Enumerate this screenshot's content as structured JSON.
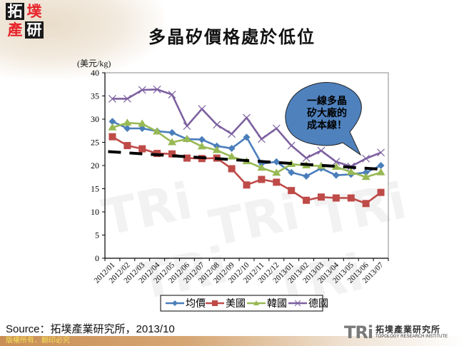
{
  "header": {
    "logo_chars": [
      "拓",
      "墣",
      "產",
      "研"
    ],
    "title": "多晶矽價格處於低位"
  },
  "chart_data": {
    "type": "line",
    "title": "多晶矽價格處於低位",
    "ylabel": "(美元/kg)",
    "xlabel": "",
    "ylim": [
      0,
      40
    ],
    "yticks": [
      0,
      5,
      10,
      15,
      20,
      25,
      30,
      35,
      40
    ],
    "grid": false,
    "legend_position": "bottom",
    "categories": [
      "2012/01",
      "2012/02",
      "2012/03",
      "2012/04",
      "2012/05",
      "2012/06",
      "2012/07",
      "2012/08",
      "2012/09",
      "2012/10",
      "2012/11",
      "2012/12",
      "2013/01",
      "2013/02",
      "2013/03",
      "2013/04",
      "2013/05",
      "2013/06",
      "2013/07"
    ],
    "series": [
      {
        "name": "均價",
        "color": "#4a7ebb",
        "marker": "diamond",
        "values": [
          29.5,
          28.0,
          28.0,
          27.4,
          27.1,
          25.7,
          25.6,
          24.2,
          23.7,
          26.1,
          20.4,
          20.8,
          18.5,
          17.7,
          19.4,
          17.9,
          18.1,
          18.5,
          20.0
        ]
      },
      {
        "name": "美國",
        "color": "#be4b48",
        "marker": "square",
        "values": [
          26.2,
          24.3,
          23.6,
          22.6,
          22.5,
          21.6,
          21.5,
          21.6,
          19.3,
          15.8,
          17.0,
          16.4,
          14.6,
          12.5,
          13.2,
          13.0,
          13.0,
          11.8,
          14.2
        ]
      },
      {
        "name": "韓國",
        "color": "#98b954",
        "marker": "triangle",
        "values": [
          28.2,
          29.2,
          29.0,
          27.3,
          25.0,
          25.7,
          24.1,
          23.3,
          21.9,
          20.9,
          19.5,
          18.4,
          20.3,
          20.0,
          19.9,
          19.7,
          18.6,
          17.5,
          18.5
        ]
      },
      {
        "name": "德國",
        "color": "#7d60a0",
        "marker": "x",
        "values": [
          34.4,
          34.4,
          36.3,
          36.4,
          35.3,
          28.5,
          32.2,
          28.8,
          26.8,
          30.3,
          25.7,
          28.0,
          24.3,
          21.6,
          23.2,
          20.8,
          19.8,
          21.5,
          22.8
        ]
      }
    ],
    "trendline": {
      "name": "一線多晶矽大廠的成本線",
      "style": "dashed",
      "color": "#000000",
      "start": 23.0,
      "end": 19.2
    },
    "annotation": {
      "text_lines": [
        "一線多晶",
        "矽大廠的",
        "成本線！"
      ],
      "fill": "#4f81bd"
    }
  },
  "footer": {
    "source": "Source：拓墣產業研究所，2013/10",
    "copyright": "版權所有．翻印必究",
    "org_logo_mark": "TRi",
    "org_name_zh": "拓墣產業研究所",
    "org_name_en": "TOPOLOGY RESEARCH INSTITUTE"
  }
}
